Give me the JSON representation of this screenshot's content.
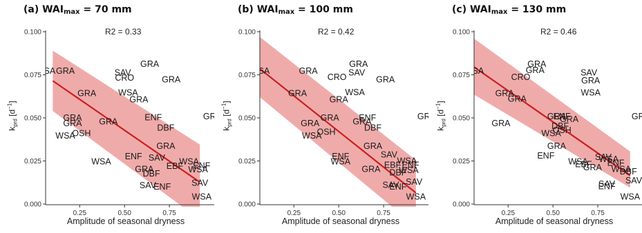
{
  "panels": [
    {
      "title_prefix": "(a) WAI",
      "title_sub": "max",
      "title_suffix": " = 70 mm",
      "r2_label": "R2 = 0.33",
      "line": [
        0.1,
        0.0715,
        0.92,
        0.0127
      ],
      "band_upper": [
        0.1,
        0.089,
        0.92,
        0.0345
      ],
      "band_lower": [
        0.1,
        0.054,
        0.92,
        -0.009
      ],
      "points": [
        {
          "label": "WSA",
          "x": 0.06,
          "y": 0.0775
        },
        {
          "label": "GRA",
          "x": 0.17,
          "y": 0.0775
        },
        {
          "label": "GRA",
          "x": 0.64,
          "y": 0.0815
        },
        {
          "label": "SAV",
          "x": 0.49,
          "y": 0.0765
        },
        {
          "label": "CRO",
          "x": 0.5,
          "y": 0.0735
        },
        {
          "label": "GRA",
          "x": 0.76,
          "y": 0.0725
        },
        {
          "label": "GRA",
          "x": 0.29,
          "y": 0.0645
        },
        {
          "label": "WSA",
          "x": 0.52,
          "y": 0.0648
        },
        {
          "label": "GRA",
          "x": 0.58,
          "y": 0.0608
        },
        {
          "label": "GRA",
          "x": 0.21,
          "y": 0.0502
        },
        {
          "label": "GRA",
          "x": 0.21,
          "y": 0.047
        },
        {
          "label": "GRA",
          "x": 0.41,
          "y": 0.048
        },
        {
          "label": "ENF",
          "x": 0.66,
          "y": 0.0505
        },
        {
          "label": "GRA",
          "x": 0.99,
          "y": 0.051
        },
        {
          "label": "OSH",
          "x": 0.26,
          "y": 0.0412
        },
        {
          "label": "WSA",
          "x": 0.17,
          "y": 0.0398
        },
        {
          "label": "DBF",
          "x": 0.73,
          "y": 0.0445
        },
        {
          "label": "GRA",
          "x": 0.73,
          "y": 0.0338
        },
        {
          "label": "ENF",
          "x": 0.55,
          "y": 0.0278
        },
        {
          "label": "SAV",
          "x": 0.68,
          "y": 0.027
        },
        {
          "label": "WSA",
          "x": 0.37,
          "y": 0.0248
        },
        {
          "label": "GRA",
          "x": 0.61,
          "y": 0.0205
        },
        {
          "label": "EBF",
          "x": 0.78,
          "y": 0.0222
        },
        {
          "label": "WSA",
          "x": 0.86,
          "y": 0.0248
        },
        {
          "label": "ENF",
          "x": 0.93,
          "y": 0.0225
        },
        {
          "label": "WSA",
          "x": 0.91,
          "y": 0.0202
        },
        {
          "label": "DBF",
          "x": 0.65,
          "y": 0.0178
        },
        {
          "label": "SAV",
          "x": 0.92,
          "y": 0.0125
        },
        {
          "label": "SAV",
          "x": 0.63,
          "y": 0.011
        },
        {
          "label": "ENF",
          "x": 0.71,
          "y": 0.0102
        },
        {
          "label": "WSA",
          "x": 0.93,
          "y": 0.0045
        }
      ]
    },
    {
      "title_prefix": "(b) WAI",
      "title_sub": "max",
      "title_suffix": " = 100 mm",
      "r2_label": "R2 = 0.42",
      "line": [
        0.06,
        0.0785,
        0.93,
        0.0065
      ],
      "band_upper": [
        0.06,
        0.097,
        0.93,
        0.0255
      ],
      "band_lower": [
        0.06,
        0.062,
        0.93,
        -0.013
      ],
      "points": [
        {
          "label": "WSA",
          "x": 0.06,
          "y": 0.0775
        },
        {
          "label": "GRA",
          "x": 0.61,
          "y": 0.0815
        },
        {
          "label": "SAV",
          "x": 0.6,
          "y": 0.0765
        },
        {
          "label": "GRA",
          "x": 0.33,
          "y": 0.0775
        },
        {
          "label": "CRO",
          "x": 0.49,
          "y": 0.0738
        },
        {
          "label": "GRA",
          "x": 0.76,
          "y": 0.0725
        },
        {
          "label": "GRA",
          "x": 0.27,
          "y": 0.0645
        },
        {
          "label": "WSA",
          "x": 0.59,
          "y": 0.065
        },
        {
          "label": "GRA",
          "x": 0.5,
          "y": 0.0608
        },
        {
          "label": "GRA",
          "x": 0.99,
          "y": 0.051
        },
        {
          "label": "ENF",
          "x": 0.66,
          "y": 0.0502
        },
        {
          "label": "GRA",
          "x": 0.45,
          "y": 0.0502
        },
        {
          "label": "GRA",
          "x": 0.63,
          "y": 0.048
        },
        {
          "label": "GRA",
          "x": 0.34,
          "y": 0.047
        },
        {
          "label": "DBF",
          "x": 0.69,
          "y": 0.0445
        },
        {
          "label": "OSH",
          "x": 0.43,
          "y": 0.042
        },
        {
          "label": "WSA",
          "x": 0.35,
          "y": 0.0398
        },
        {
          "label": "GRA",
          "x": 0.69,
          "y": 0.0338
        },
        {
          "label": "SAV",
          "x": 0.78,
          "y": 0.0288
        },
        {
          "label": "ENF",
          "x": 0.51,
          "y": 0.0278
        },
        {
          "label": "WSA",
          "x": 0.51,
          "y": 0.0248
        },
        {
          "label": "WSA",
          "x": 0.88,
          "y": 0.0252
        },
        {
          "label": "EBF",
          "x": 0.8,
          "y": 0.0228
        },
        {
          "label": "ENF",
          "x": 0.9,
          "y": 0.0228
        },
        {
          "label": "GRA",
          "x": 0.68,
          "y": 0.0205
        },
        {
          "label": "WSA",
          "x": 0.89,
          "y": 0.0198
        },
        {
          "label": "DBF",
          "x": 0.83,
          "y": 0.0185
        },
        {
          "label": "SAV",
          "x": 0.92,
          "y": 0.013
        },
        {
          "label": "SAV",
          "x": 0.79,
          "y": 0.0112
        },
        {
          "label": "ENF",
          "x": 0.83,
          "y": 0.0102
        },
        {
          "label": "WSA",
          "x": 0.93,
          "y": 0.0045
        }
      ]
    },
    {
      "title_prefix": "(c) WAI",
      "title_sub": "max",
      "title_suffix": " = 130 mm",
      "r2_label": "R2 = 0.46",
      "line": [
        0.06,
        0.0795,
        0.93,
        0.0165
      ],
      "band_upper": [
        0.06,
        0.096,
        0.93,
        0.0305
      ],
      "band_lower": [
        0.06,
        0.0635,
        0.93,
        0.0095
      ],
      "points": [
        {
          "label": "WSA",
          "x": 0.06,
          "y": 0.0775
        },
        {
          "label": "GRA",
          "x": 0.41,
          "y": 0.0815
        },
        {
          "label": "GRA",
          "x": 0.4,
          "y": 0.0778
        },
        {
          "label": "CRO",
          "x": 0.32,
          "y": 0.0738
        },
        {
          "label": "SAV",
          "x": 0.7,
          "y": 0.0765
        },
        {
          "label": "GRA",
          "x": 0.71,
          "y": 0.0718
        },
        {
          "label": "WSA",
          "x": 0.71,
          "y": 0.0648
        },
        {
          "label": "GRA",
          "x": 0.23,
          "y": 0.0645
        },
        {
          "label": "GRA",
          "x": 0.3,
          "y": 0.0612
        },
        {
          "label": "GRA",
          "x": 0.99,
          "y": 0.051
        },
        {
          "label": "GRA",
          "x": 0.21,
          "y": 0.047
        },
        {
          "label": "GRA",
          "x": 0.52,
          "y": 0.051
        },
        {
          "label": "ENF",
          "x": 0.55,
          "y": 0.051
        },
        {
          "label": "GRA",
          "x": 0.59,
          "y": 0.0495
        },
        {
          "label": "DBF",
          "x": 0.54,
          "y": 0.0455
        },
        {
          "label": "OSH",
          "x": 0.55,
          "y": 0.043
        },
        {
          "label": "WSA",
          "x": 0.49,
          "y": 0.0412
        },
        {
          "label": "GRA",
          "x": 0.52,
          "y": 0.0338
        },
        {
          "label": "ENF",
          "x": 0.46,
          "y": 0.0282
        },
        {
          "label": "SAV",
          "x": 0.78,
          "y": 0.0275
        },
        {
          "label": "WSA",
          "x": 0.64,
          "y": 0.0248
        },
        {
          "label": "WSA",
          "x": 0.81,
          "y": 0.0262
        },
        {
          "label": "ENF",
          "x": 0.85,
          "y": 0.024
        },
        {
          "label": "EBF",
          "x": 0.67,
          "y": 0.0232
        },
        {
          "label": "GRA",
          "x": 0.72,
          "y": 0.0215
        },
        {
          "label": "WSA",
          "x": 0.88,
          "y": 0.0205
        },
        {
          "label": "DBF",
          "x": 0.92,
          "y": 0.019
        },
        {
          "label": "SAV",
          "x": 0.95,
          "y": 0.0138
        },
        {
          "label": "SAV",
          "x": 0.8,
          "y": 0.0118
        },
        {
          "label": "ENF",
          "x": 0.8,
          "y": 0.0105
        },
        {
          "label": "WSA",
          "x": 0.93,
          "y": 0.0045
        }
      ]
    }
  ],
  "axis": {
    "ylabel_main": "k",
    "ylabel_sub": "prd",
    "ylabel_unit_open": " [d",
    "ylabel_unit_sup": "−1",
    "ylabel_unit_close": "]",
    "xlabel": "Amplitude of seasonal dryness",
    "xticks": [
      "0.25",
      "0.50",
      "0.75"
    ],
    "yticks": [
      "0.000",
      "0.025",
      "0.050",
      "0.075",
      "0.100"
    ]
  },
  "colors": {
    "band": "#ec9c9b",
    "line": "#cc1f1f",
    "text": "#1a1a1a",
    "axis": "#333333"
  },
  "chart_data": [
    {
      "type": "scatter",
      "title": "(a) WAImax = 70 mm",
      "annotation": "R2 = 0.33",
      "xlabel": "Amplitude of seasonal dryness",
      "ylabel": "kprd [d-1]",
      "xticks": [
        0.25,
        0.5,
        0.75
      ],
      "yticks": [
        0.0,
        0.025,
        0.05,
        0.075,
        0.1
      ],
      "regression": "linear fit with confidence band"
    },
    {
      "type": "scatter",
      "title": "(b) WAImax = 100 mm",
      "annotation": "R2 = 0.42",
      "xlabel": "Amplitude of seasonal dryness",
      "ylabel": "kprd [d-1]",
      "xticks": [
        0.25,
        0.5,
        0.75
      ],
      "yticks": [
        0.0,
        0.025,
        0.05,
        0.075,
        0.1
      ],
      "regression": "linear fit with confidence band"
    },
    {
      "type": "scatter",
      "title": "(c) WAImax = 130 mm",
      "annotation": "R2 = 0.46",
      "xlabel": "Amplitude of seasonal dryness",
      "ylabel": "kprd [d-1]",
      "xticks": [
        0.25,
        0.5,
        0.75
      ],
      "yticks": [
        0.0,
        0.025,
        0.05,
        0.075,
        0.1
      ],
      "regression": "linear fit with confidence band"
    }
  ]
}
